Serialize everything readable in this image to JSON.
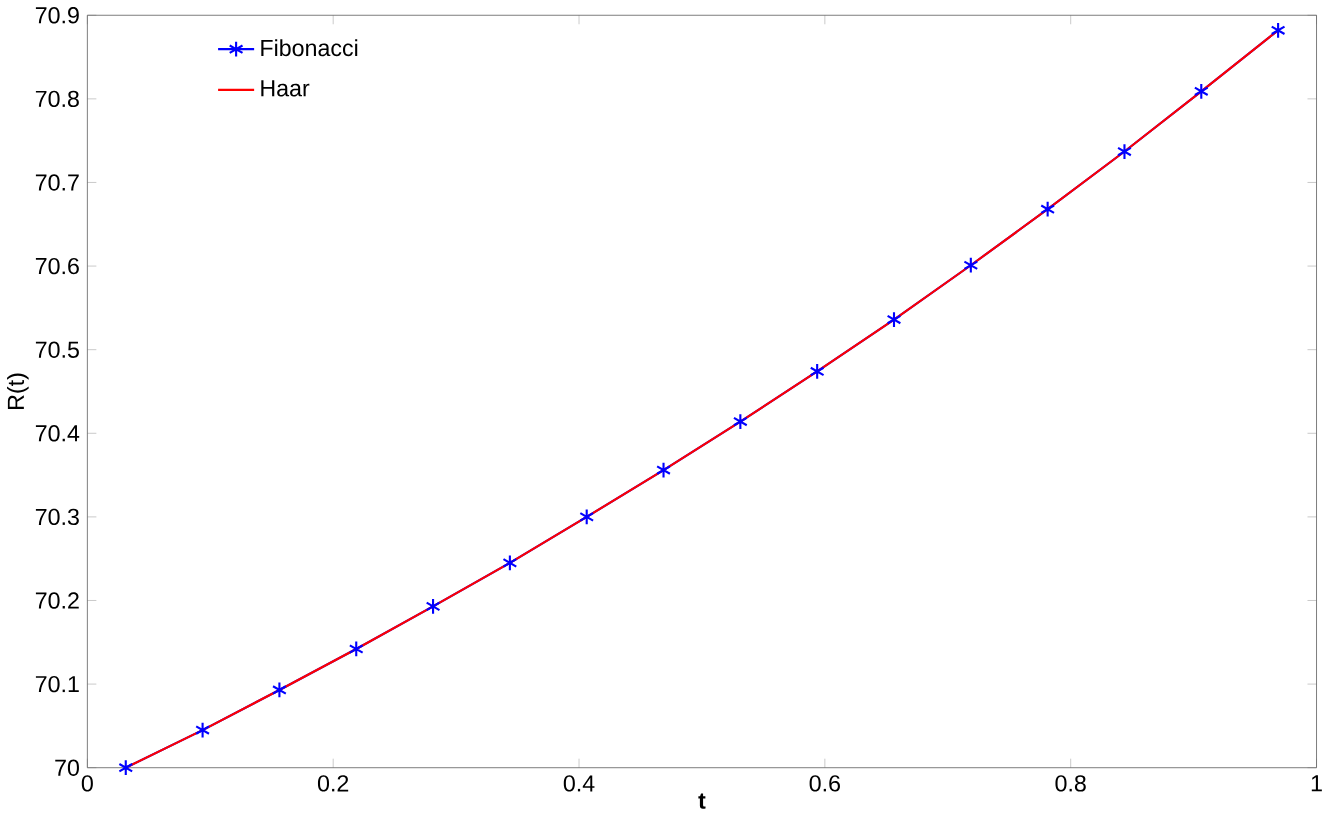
{
  "chart_data": {
    "type": "line",
    "xlabel": "t",
    "ylabel": "R(t)",
    "x": [
      0.03125,
      0.09375,
      0.15625,
      0.21875,
      0.28125,
      0.34375,
      0.40625,
      0.46875,
      0.53125,
      0.59375,
      0.65625,
      0.71875,
      0.78125,
      0.84375,
      0.90625,
      0.96875
    ],
    "series": [
      {
        "name": "Fibonacci",
        "color": "#0000ff",
        "marker": "cross",
        "values": [
          70.0,
          70.045,
          70.093,
          70.142,
          70.193,
          70.245,
          70.3,
          70.356,
          70.414,
          70.474,
          70.536,
          70.601,
          70.668,
          70.737,
          70.809,
          70.882
        ]
      },
      {
        "name": "Haar",
        "color": "#ff0000",
        "marker": "none",
        "values": [
          70.0,
          70.045,
          70.093,
          70.142,
          70.193,
          70.245,
          70.3,
          70.356,
          70.414,
          70.474,
          70.536,
          70.601,
          70.668,
          70.737,
          70.809,
          70.882
        ]
      }
    ],
    "xlim": [
      0,
      1
    ],
    "xticks": [
      0,
      0.2,
      0.4,
      0.6,
      0.8,
      1
    ],
    "ylim": [
      70,
      70.9
    ],
    "yticks": [
      70,
      70.1,
      70.2,
      70.3,
      70.4,
      70.5,
      70.6,
      70.7,
      70.8,
      70.9
    ],
    "grid": false,
    "legend": "top left"
  }
}
